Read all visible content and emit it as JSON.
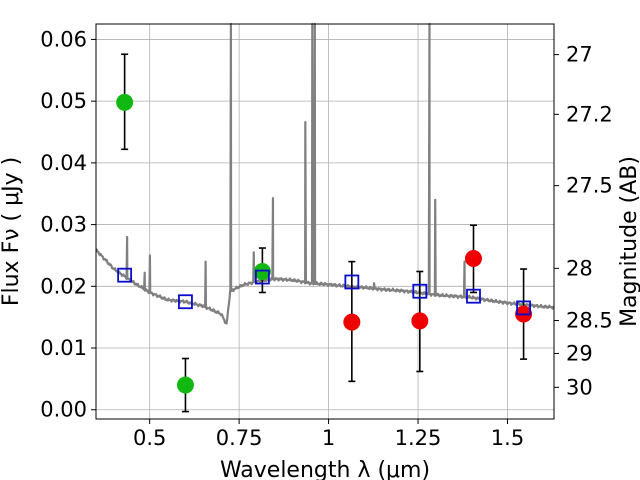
{
  "chart_data": {
    "type": "scatter",
    "xlabel": "Wavelength  λ (μm)",
    "ylabel": "Flux  Fν  ( μJy )",
    "ylabel_right": "Magnitude (AB)",
    "xlim": [
      0.35,
      1.63
    ],
    "ylim": [
      -0.0015,
      0.0625
    ],
    "grid": true,
    "x_ticks": [
      0.5,
      0.75,
      1,
      1.25,
      1.5
    ],
    "x_tick_labels": [
      "0.5",
      "0.75",
      "1",
      "1.25",
      "1.5"
    ],
    "y_ticks": [
      0.0,
      0.01,
      0.02,
      0.03,
      0.04,
      0.05,
      0.06
    ],
    "y_tick_labels": [
      "0.00",
      "0.01",
      "0.02",
      "0.03",
      "0.04",
      "0.05",
      "0.06"
    ],
    "right_ticks": [
      {
        "mag": 27,
        "label": "27"
      },
      {
        "mag": 27.2,
        "label": "27.2"
      },
      {
        "mag": 27.5,
        "label": "27.5"
      },
      {
        "mag": 28,
        "label": "28"
      },
      {
        "mag": 28.5,
        "label": "28.5"
      },
      {
        "mag": 29,
        "label": "29"
      },
      {
        "mag": 30,
        "label": "30"
      }
    ],
    "colors": {
      "template": "#808080",
      "green": "#12b812",
      "red": "#ee0000",
      "model": "#0a0ad0",
      "grid": "#b0b0b0"
    },
    "series": [
      {
        "marker": "circle-green",
        "points": [
          {
            "x": 0.43,
            "y": 0.0498,
            "lo": 0.0422,
            "hi": 0.0576
          },
          {
            "x": 0.6,
            "y": 0.004,
            "lo": -0.0003,
            "hi": 0.0083
          },
          {
            "x": 0.815,
            "y": 0.0224,
            "lo": 0.019,
            "hi": 0.0262
          }
        ]
      },
      {
        "marker": "circle-red",
        "points": [
          {
            "x": 1.065,
            "y": 0.0142,
            "lo": 0.0046,
            "hi": 0.024
          },
          {
            "x": 1.255,
            "y": 0.0144,
            "lo": 0.0062,
            "hi": 0.0224
          },
          {
            "x": 1.405,
            "y": 0.0245,
            "lo": 0.019,
            "hi": 0.0299
          },
          {
            "x": 1.545,
            "y": 0.0155,
            "lo": 0.0082,
            "hi": 0.0228
          }
        ]
      },
      {
        "marker": "square-blue",
        "points": [
          {
            "x": 0.43,
            "y": 0.0218
          },
          {
            "x": 0.6,
            "y": 0.0175
          },
          {
            "x": 0.815,
            "y": 0.0215
          },
          {
            "x": 1.065,
            "y": 0.0207
          },
          {
            "x": 1.255,
            "y": 0.0192
          },
          {
            "x": 1.405,
            "y": 0.0184
          },
          {
            "x": 1.545,
            "y": 0.0165
          }
        ]
      }
    ],
    "template_continuum": [
      [
        0.35,
        0.0259
      ],
      [
        0.4,
        0.0228
      ],
      [
        0.45,
        0.0208
      ],
      [
        0.5,
        0.019
      ],
      [
        0.55,
        0.0178
      ],
      [
        0.6,
        0.0175
      ],
      [
        0.65,
        0.0168
      ],
      [
        0.7,
        0.0155
      ],
      [
        0.715,
        0.0138
      ],
      [
        0.725,
        0.0192
      ],
      [
        0.76,
        0.0202
      ],
      [
        0.8,
        0.0208
      ],
      [
        0.85,
        0.0212
      ],
      [
        0.9,
        0.021
      ],
      [
        0.95,
        0.0205
      ],
      [
        1.0,
        0.0203
      ],
      [
        1.05,
        0.02
      ],
      [
        1.1,
        0.0198
      ],
      [
        1.15,
        0.0195
      ],
      [
        1.2,
        0.0193
      ],
      [
        1.25,
        0.019
      ],
      [
        1.3,
        0.0186
      ],
      [
        1.35,
        0.0184
      ],
      [
        1.4,
        0.0182
      ],
      [
        1.45,
        0.0177
      ],
      [
        1.5,
        0.0173
      ],
      [
        1.55,
        0.017
      ],
      [
        1.6,
        0.0167
      ],
      [
        1.63,
        0.0166
      ]
    ],
    "template_lines": [
      {
        "x": 0.437,
        "peak": 0.028
      },
      {
        "x": 0.4861,
        "peak": 0.0222
      },
      {
        "x": 0.5007,
        "peak": 0.025
      },
      {
        "x": 0.6563,
        "peak": 0.024
      },
      {
        "x": 0.727,
        "peak": 0.07
      },
      {
        "x": 0.791,
        "peak": 0.0255
      },
      {
        "x": 0.8446,
        "peak": 0.0343
      },
      {
        "x": 0.935,
        "peak": 0.0466
      },
      {
        "x": 0.9545,
        "peak": 0.07
      },
      {
        "x": 0.9615,
        "peak": 0.07
      },
      {
        "x": 1.127,
        "peak": 0.0205
      },
      {
        "x": 1.282,
        "peak": 0.07
      },
      {
        "x": 1.298,
        "peak": 0.034
      },
      {
        "x": 1.38,
        "peak": 0.024
      }
    ]
  }
}
